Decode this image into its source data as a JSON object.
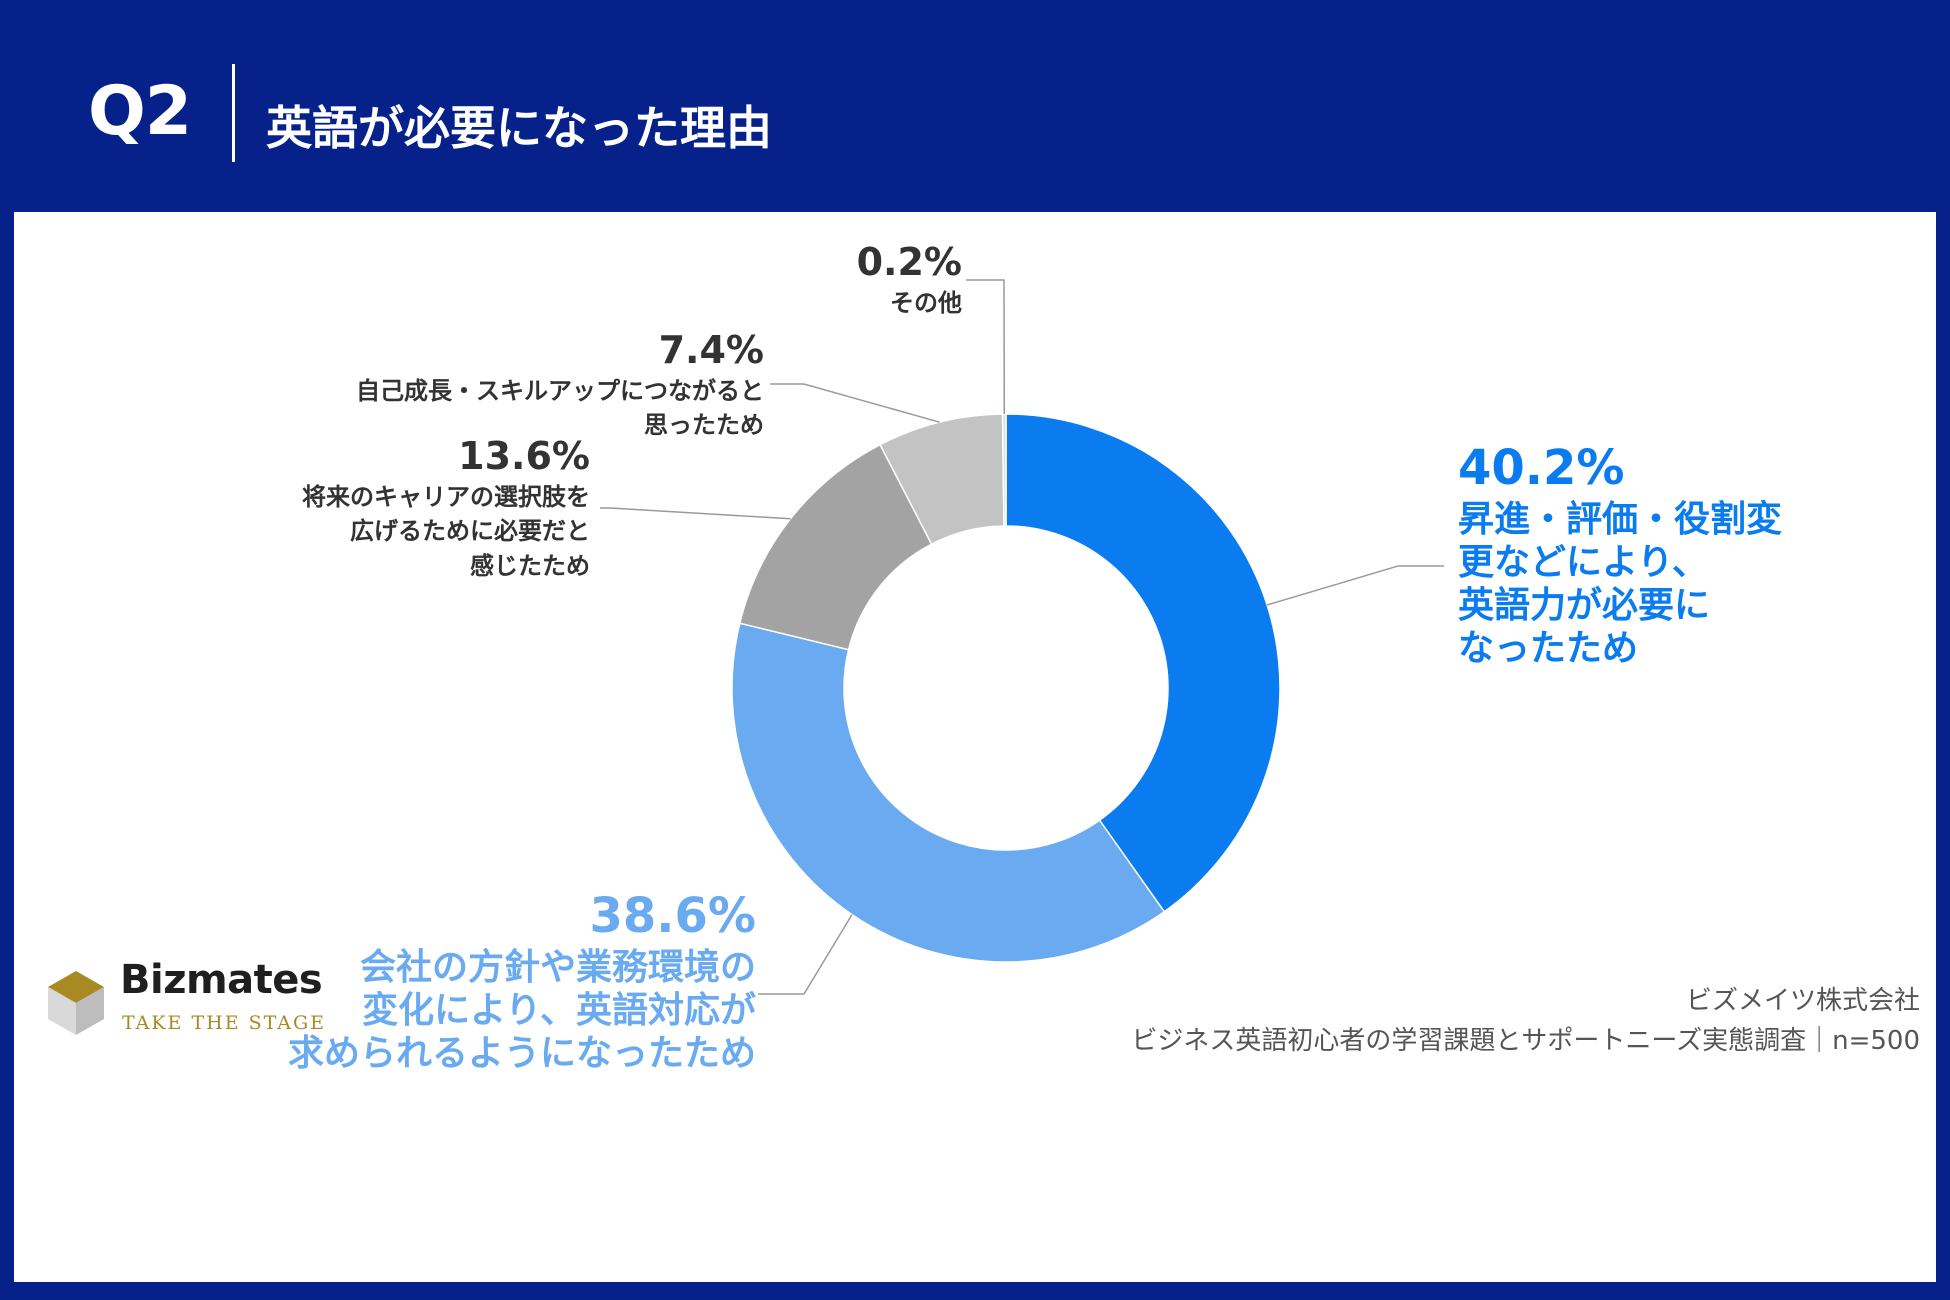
{
  "header": {
    "question_label": "Q2",
    "title": "英語が必要になった理由"
  },
  "chart_data": {
    "type": "pie",
    "variant": "donut",
    "title": "英語が必要になった理由",
    "slices": [
      {
        "label_lines": [
          "昇進・評価・役割変",
          "更などにより、",
          "英語力が必要に",
          "なったため"
        ],
        "value": 40.2,
        "pct_label": "40.2%",
        "color": "#0a7cf0"
      },
      {
        "label_lines": [
          "会社の方針や業務環境の",
          "変化により、英語対応が",
          "求められるようになったため"
        ],
        "value": 38.6,
        "pct_label": "38.6%",
        "color": "#6aaaf0"
      },
      {
        "label_lines": [
          "将来のキャリアの選択肢を",
          "広げるために必要だと",
          "感じたため"
        ],
        "value": 13.6,
        "pct_label": "13.6%",
        "color": "#a3a3a3"
      },
      {
        "label_lines": [
          "自己成長・スキルアップにつながると",
          "思ったため"
        ],
        "value": 7.4,
        "pct_label": "7.4%",
        "color": "#c3c3c3"
      },
      {
        "label_lines": [
          "その他"
        ],
        "value": 0.2,
        "pct_label": "0.2%",
        "color": "#dddddd"
      }
    ]
  },
  "footer": {
    "brand_name": "Bizmates",
    "brand_tagline": "TAKE THE STAGE",
    "company": "ビズメイツ株式会社",
    "survey": "ビジネス英語初心者の学習課題とサポートニーズ実態調査｜n=500"
  }
}
